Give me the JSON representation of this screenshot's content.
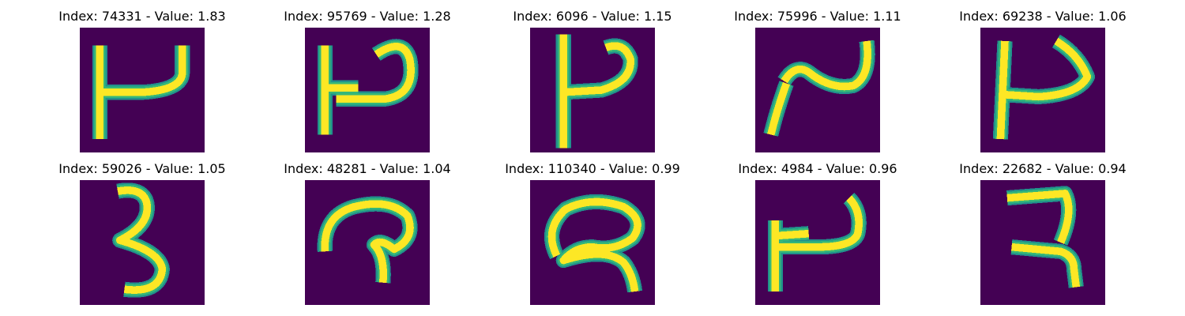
{
  "figure": {
    "background": "#ffffff",
    "image_background": "#440154",
    "stroke_colors": {
      "core": "#fde725",
      "edge": "#35b779",
      "halo": "#21918c"
    }
  },
  "panels": [
    {
      "title": "Index: 74331 - Value: 1.83"
    },
    {
      "title": "Index: 95769 - Value: 1.28"
    },
    {
      "title": "Index: 6096 - Value: 1.15"
    },
    {
      "title": "Index: 75996 - Value: 1.11"
    },
    {
      "title": "Index: 69238 - Value: 1.06"
    },
    {
      "title": "Index: 59026 - Value: 1.05"
    },
    {
      "title": "Index: 48281 - Value: 1.04"
    },
    {
      "title": "Index: 110340 - Value: 0.99"
    },
    {
      "title": "Index: 4984 - Value: 0.96"
    },
    {
      "title": "Index: 22682 - Value: 0.94"
    }
  ]
}
